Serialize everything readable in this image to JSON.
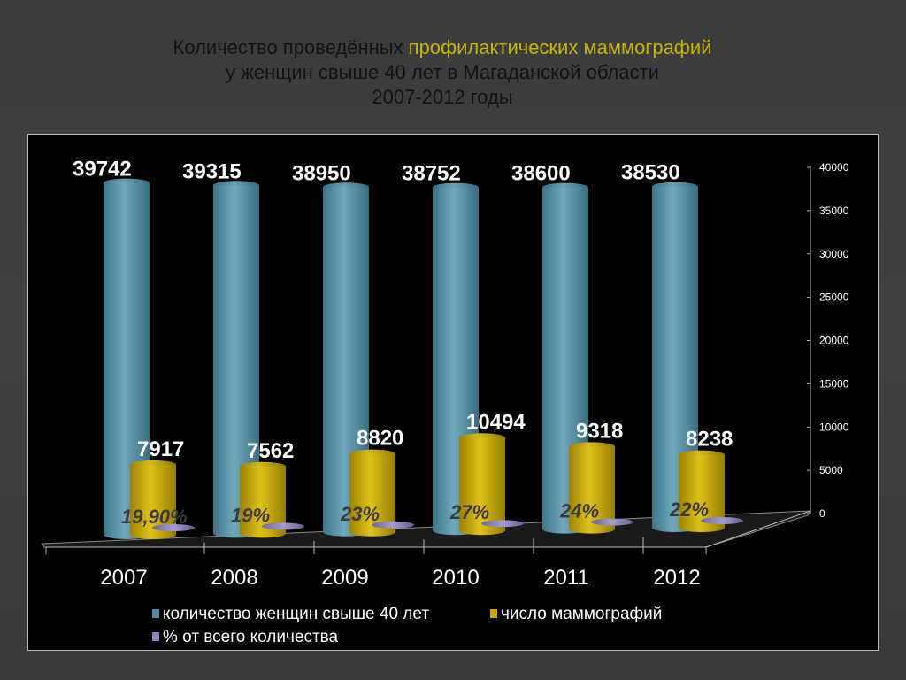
{
  "title": {
    "line1_prefix": "Количество проведённых ",
    "line1_highlight": "профилактических маммографий",
    "line2": "у женщин свыше 40 лет в  Магаданской области",
    "line3": "2007-2012 годы"
  },
  "colors": {
    "women": "#4f8fa6",
    "mammo": "#c9a800",
    "percent": "#8c84b8",
    "background": "#3c3c3c",
    "plot_bg": "#000000",
    "title_highlight": "#c8b400"
  },
  "chart_data": {
    "type": "bar",
    "categories": [
      "2007",
      "2008",
      "2009",
      "2010",
      "2011",
      "2012"
    ],
    "series": [
      {
        "name": "количество женщин свыше 40 лет",
        "values": [
          39742,
          39315,
          38950,
          38752,
          38600,
          38530
        ]
      },
      {
        "name": "число маммографий",
        "values": [
          7917,
          7562,
          8820,
          10494,
          9318,
          8238
        ]
      },
      {
        "name": "% от всего количества",
        "values": [
          19.9,
          19,
          23,
          27,
          24,
          22
        ]
      }
    ],
    "value_labels": {
      "women": [
        "39742",
        "39315",
        "38950",
        "38752",
        "38600",
        "38530"
      ],
      "mammo": [
        "7917",
        "7562",
        "8820",
        "10494",
        "9318",
        "8238"
      ],
      "percent": [
        "19,90%",
        "19%",
        "23%",
        "27%",
        "24%",
        "22%"
      ]
    },
    "yticks": [
      "0",
      "5000",
      "10000",
      "15000",
      "20000",
      "25000",
      "30000",
      "35000",
      "40000"
    ],
    "ylim": [
      0,
      40000
    ],
    "legend_position": "bottom",
    "grid": false
  }
}
